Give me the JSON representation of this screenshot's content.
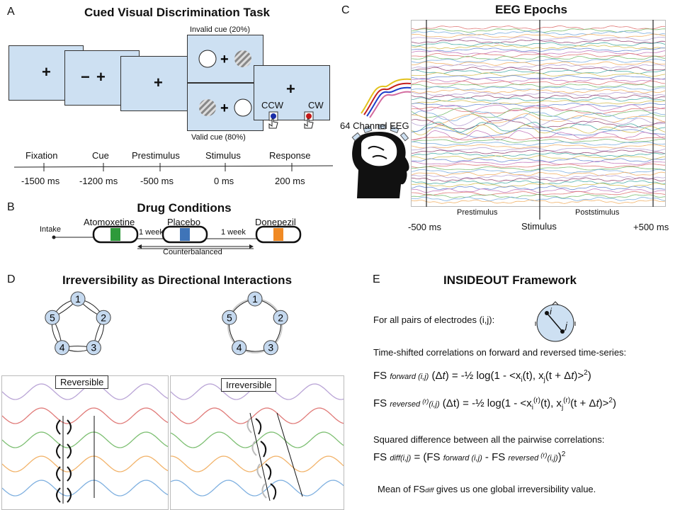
{
  "panelA": {
    "letter": "A",
    "title": "Cued Visual Discrimination Task",
    "invalid_cue": "Invalid cue (20%)",
    "valid_cue": "Valid cue (80%)",
    "ccw": "CCW",
    "cw": "CW",
    "phases": [
      "Fixation",
      "Cue",
      "Prestimulus",
      "Stimulus",
      "Response"
    ],
    "times": [
      "-1500 ms",
      "-1200 ms",
      "-500 ms",
      "0 ms",
      "200 ms"
    ]
  },
  "panelB": {
    "letter": "B",
    "title": "Drug Conditions",
    "intake": "Intake",
    "drugs": [
      "Atomoxetine",
      "Placebo",
      "Donepezil"
    ],
    "interval_1": "1 week",
    "interval_2": "1 week",
    "counterbalanced": "Counterbalanced",
    "colors": [
      "#2e9a3a",
      "#3f74b8",
      "#f08a24"
    ]
  },
  "panelC": {
    "letter": "C",
    "title": "EEG Epochs",
    "eeg_label": "64 Channel EEG",
    "prestimulus": "Prestimulus",
    "poststimulus": "Poststimulus",
    "t_start": "-500 ms",
    "t_mid": "Stimulus",
    "t_end": "+500 ms"
  },
  "panelD": {
    "letter": "D",
    "title": "Irreversibility as Directional Interactions",
    "nodes": [
      "1",
      "2",
      "3",
      "4",
      "5"
    ],
    "reversible": "Reversible",
    "irreversible": "Irreversible",
    "wave_colors": [
      "#b9a4d6",
      "#e07a78",
      "#7dbf72",
      "#f2b36a",
      "#7fb0e0"
    ]
  },
  "panelE": {
    "letter": "E",
    "title": "INSIDEOUT Framework",
    "pairs_text": "For all pairs of electrodes (i,j):",
    "node_i": "i",
    "node_j": "j",
    "shifted_text": "Time-shifted correlations on forward and reversed time-series:",
    "squared_text": "Squared difference between all the pairwise correlations:",
    "mean_text": "Mean of FS",
    "mean_sub": "diff",
    "mean_rest": " gives us one global irreversibility value."
  }
}
